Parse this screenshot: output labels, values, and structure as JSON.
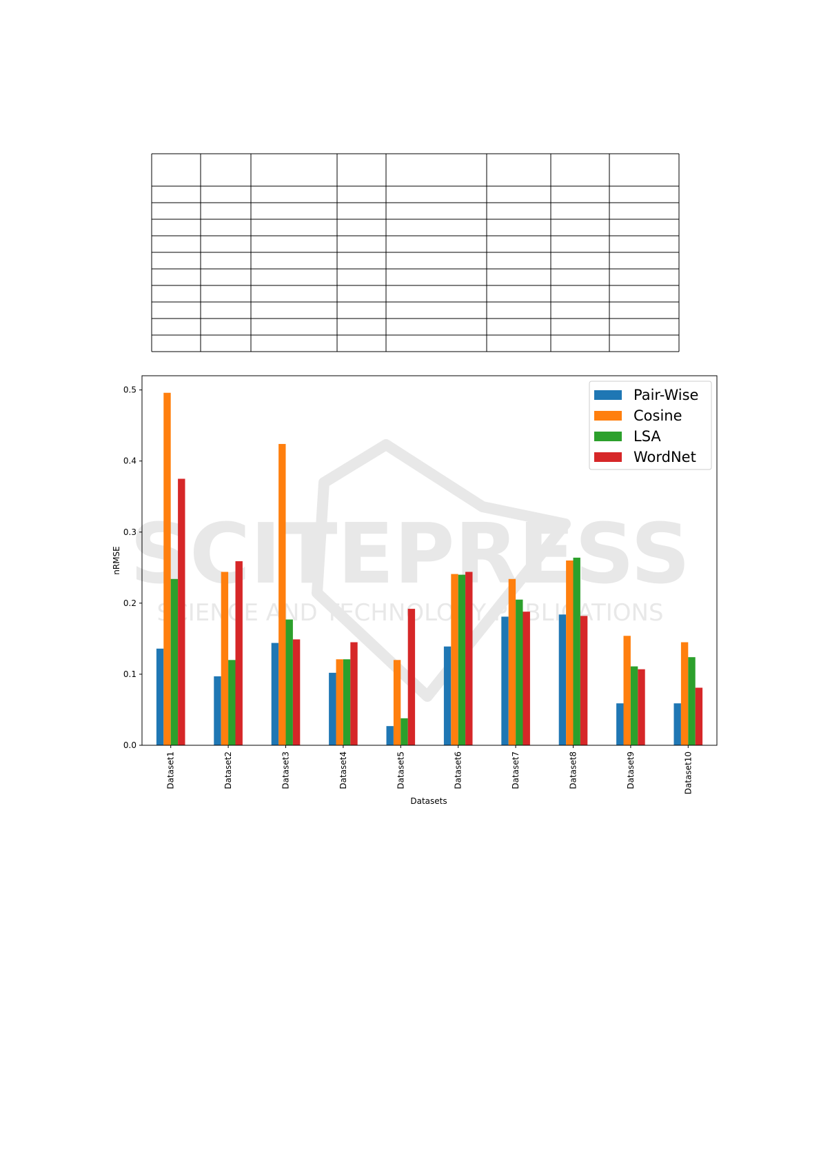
{
  "watermark": {
    "logo_text": "SCITEPRESS",
    "tagline": "SCIENCE AND TECHNOLOGY PUBLICATIONS"
  },
  "colors": {
    "pair_wise": "#1f77b4",
    "cosine": "#ff7f0e",
    "lsa": "#2ca02c",
    "wordnet": "#d62728"
  },
  "chart_data": {
    "type": "bar",
    "title": "",
    "xlabel": "Datasets",
    "ylabel": "nRMSE",
    "ylim": [
      0,
      0.52
    ],
    "yticks": [
      "0.0",
      "0.1",
      "0.2",
      "0.3",
      "0.4",
      "0.5"
    ],
    "categories": [
      "Dataset1",
      "Dataset2",
      "Dataset3",
      "Dataset4",
      "Dataset5",
      "Dataset6",
      "Dataset7",
      "Dataset8",
      "Dataset9",
      "Dataset10"
    ],
    "legend_position": "top-right",
    "grid": false,
    "series": [
      {
        "name": "Pair-Wise",
        "color": "#1f77b4",
        "values": [
          0.136,
          0.097,
          0.144,
          0.102,
          0.027,
          0.139,
          0.181,
          0.184,
          0.059,
          0.059
        ]
      },
      {
        "name": "Cosine",
        "color": "#ff7f0e",
        "values": [
          0.496,
          0.244,
          0.424,
          0.121,
          0.12,
          0.241,
          0.234,
          0.26,
          0.154,
          0.145
        ]
      },
      {
        "name": "LSA",
        "color": "#2ca02c",
        "values": [
          0.234,
          0.12,
          0.177,
          0.121,
          0.038,
          0.24,
          0.205,
          0.264,
          0.111,
          0.124
        ]
      },
      {
        "name": "WordNet",
        "color": "#d62728",
        "values": [
          0.375,
          0.259,
          0.149,
          0.145,
          0.192,
          0.244,
          0.188,
          0.182,
          0.107,
          0.081
        ]
      }
    ]
  }
}
